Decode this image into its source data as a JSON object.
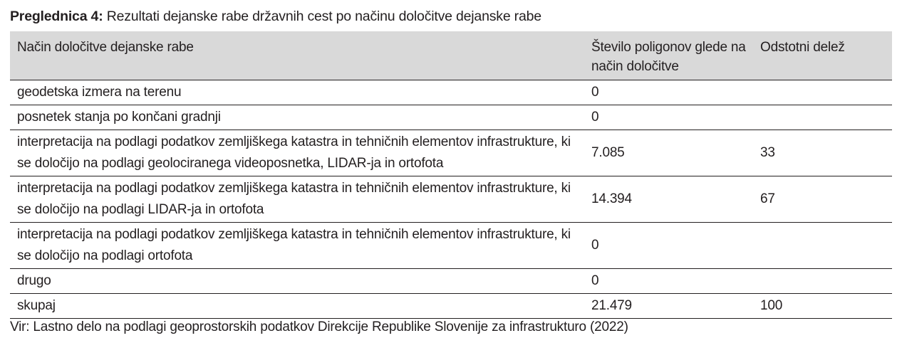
{
  "caption": {
    "label": "Preglednica 4:",
    "text": "Rezultati dejanske rabe državnih cest po načinu določitve dejanske rabe"
  },
  "table": {
    "headers": [
      "Način določitve dejanske rabe",
      "Število poligonov glede na način določitve",
      "Odstotni delež"
    ],
    "rows": [
      {
        "method": "geodetska izmera na terenu",
        "count": "0",
        "percent": ""
      },
      {
        "method": "posnetek stanja po končani gradnji",
        "count": "0",
        "percent": ""
      },
      {
        "method": "interpretacija na podlagi podatkov zemljiškega katastra in tehničnih elementov infrastrukture, ki se določijo na podlagi geolociranega videoposnetka, LIDAR-ja in ortofota",
        "count": "7.085",
        "percent": "33"
      },
      {
        "method": "interpretacija na podlagi podatkov zemljiškega katastra in tehničnih elementov infrastrukture, ki se določijo na podlagi LIDAR-ja in ortofota",
        "count": "14.394",
        "percent": "67"
      },
      {
        "method": "interpretacija na podlagi podatkov zemljiškega katastra in tehničnih elementov infrastrukture, ki se določijo na podlagi ortofota",
        "count": "0",
        "percent": ""
      },
      {
        "method": "drugo",
        "count": "0",
        "percent": ""
      },
      {
        "method": "skupaj",
        "count": "21.479",
        "percent": "100"
      }
    ]
  },
  "source": "Vir: Lastno delo na podlagi geoprostorskih podatkov Direkcije Republike Slovenije za infrastrukturo (2022)"
}
